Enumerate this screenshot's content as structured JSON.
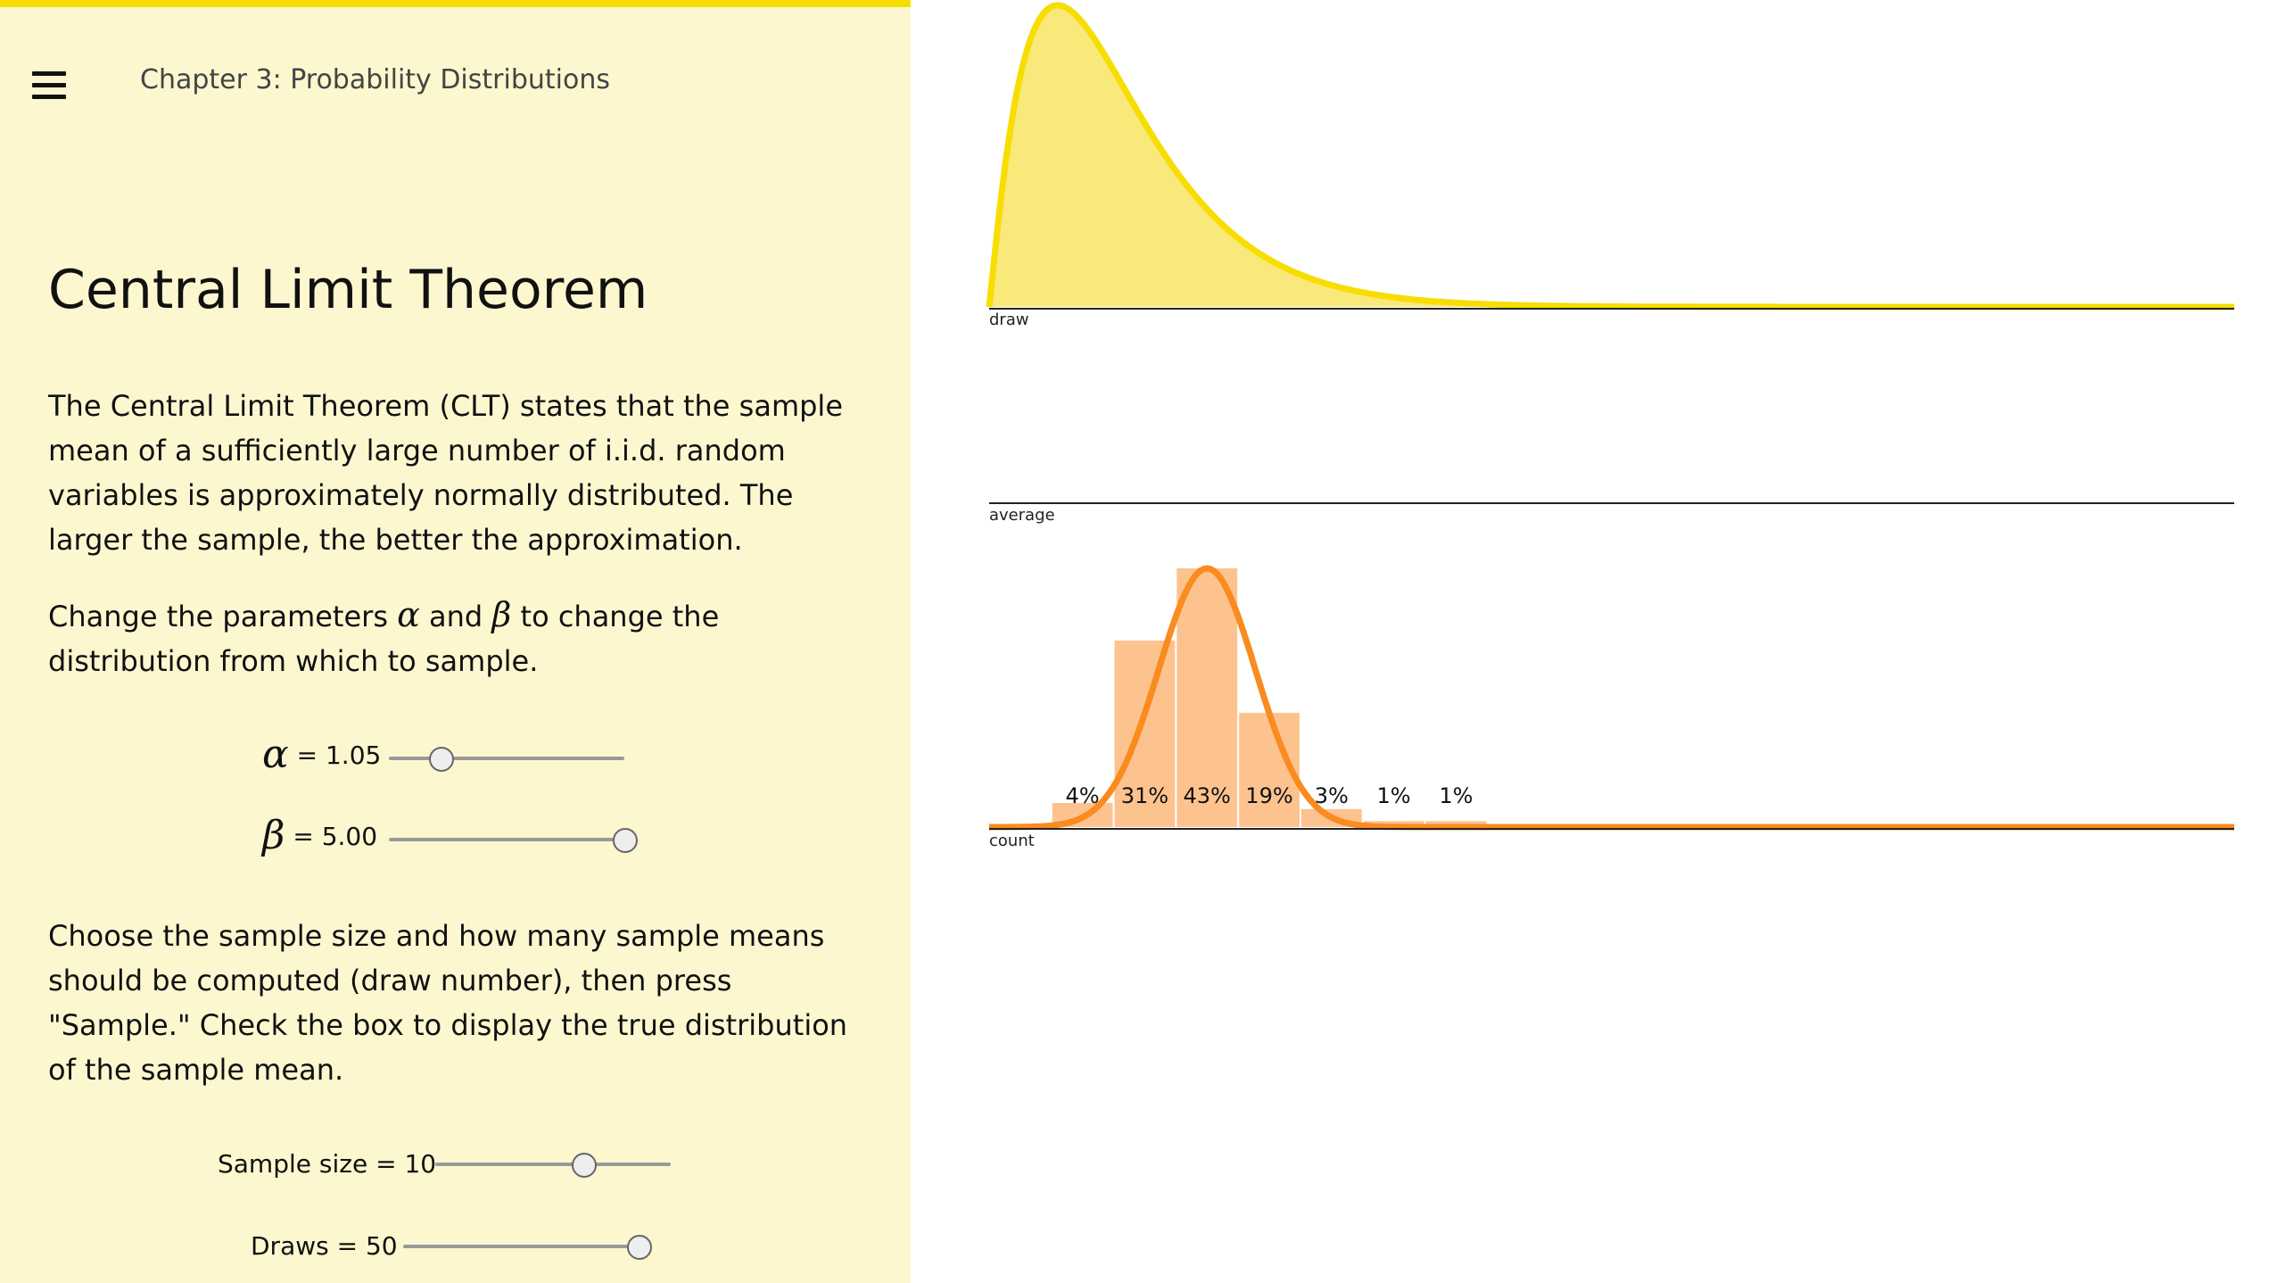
{
  "header": {
    "menu_icon": "hamburger-menu-icon",
    "chapter": "Chapter 3: Probability Distributions"
  },
  "main": {
    "title": "Central Limit Theorem",
    "paragraphs": [
      "The Central Limit Theorem (CLT) states that the sample mean of a sufficiently large number of i.i.d. random variables is approximately normally distributed. The larger the sample, the better the approximation.",
      "Choose the sample size and how many sample means should be computed (draw number), then press \"Sample.\" Check the box to display the true distribution of the sample mean."
    ],
    "param_text": {
      "before": "Change the parameters",
      "alpha_symbol": "α",
      "and": "and",
      "beta_symbol": "β",
      "after": "to change the distribution from which to sample."
    }
  },
  "controls": {
    "alpha": {
      "symbol": "α",
      "text": "= 1.05",
      "fraction": 0.22
    },
    "beta": {
      "symbol": "β",
      "text": "= 5.00",
      "fraction": 1.0
    },
    "sample_size": {
      "label": "Sample size = 10",
      "fraction": 0.63
    },
    "draws": {
      "label": "Draws = 50",
      "fraction": 1.0
    }
  },
  "chart_data": {
    "type": "bar",
    "panels": [
      {
        "name": "draw",
        "label": "draw"
      },
      {
        "name": "average",
        "label": "average"
      },
      {
        "name": "count",
        "label": "count"
      }
    ],
    "source_distribution": {
      "type": "area",
      "shape": "right-skewed",
      "color": "#f7dd00",
      "fill": "#f9e97a"
    },
    "histogram": {
      "bins": 20,
      "percent_labels": [
        "4%",
        "31%",
        "43%",
        "19%",
        "3%",
        "1%",
        "1%"
      ],
      "percents": [
        4,
        31,
        43,
        19,
        3,
        1,
        1
      ],
      "first_bin_index": 1,
      "bar_color": "#fdc38f",
      "curve_color": "#f98b1f"
    }
  }
}
